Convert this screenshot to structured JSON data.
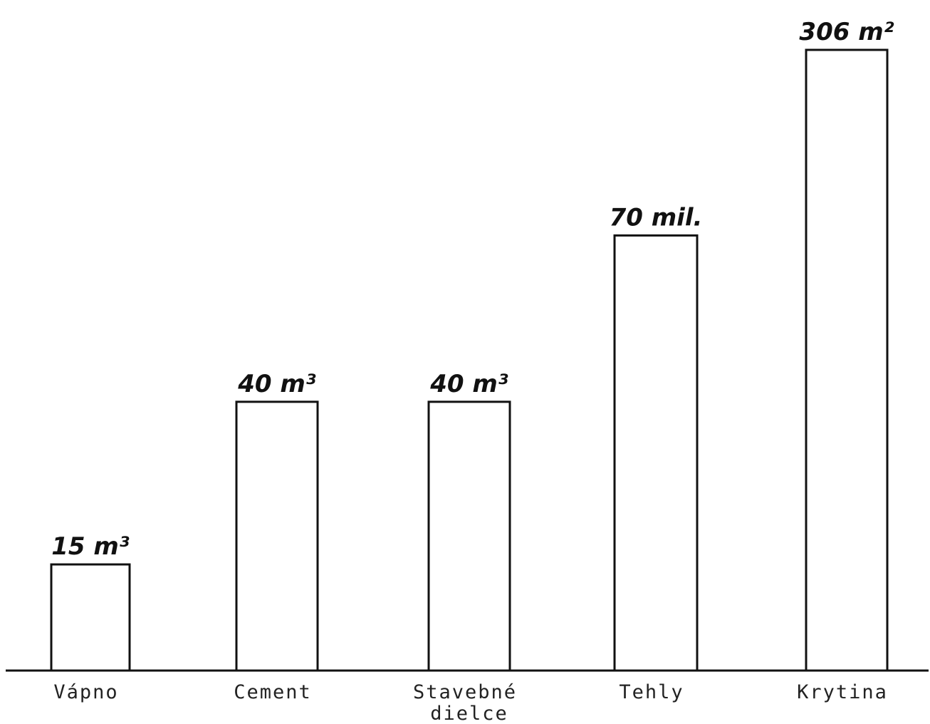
{
  "chart_data": {
    "type": "bar",
    "title": "",
    "xlabel": "",
    "ylabel": "",
    "categories": [
      "Vápno",
      "Cement",
      "Stavebné dielce",
      "Tehly",
      "Krytina"
    ],
    "category_lines": [
      [
        "Vápno"
      ],
      [
        "Cement"
      ],
      [
        "Stavebné",
        "dielce"
      ],
      [
        "Tehly"
      ],
      [
        "Krytina"
      ]
    ],
    "values": [
      15,
      40,
      40,
      70,
      306
    ],
    "relative_heights": [
      0.171,
      0.433,
      0.433,
      0.701,
      1.0
    ],
    "data_labels": [
      "15 m³",
      "40 m³",
      "40 m³",
      "70 mil.",
      "306 m²"
    ],
    "units": [
      "m³",
      "m³",
      "m³",
      "mil.",
      "m²"
    ],
    "grid": false,
    "legend": "none",
    "axis": "baseline only, no ticks",
    "colors": {
      "stroke": "#111111",
      "fill": "#ffffff"
    }
  }
}
